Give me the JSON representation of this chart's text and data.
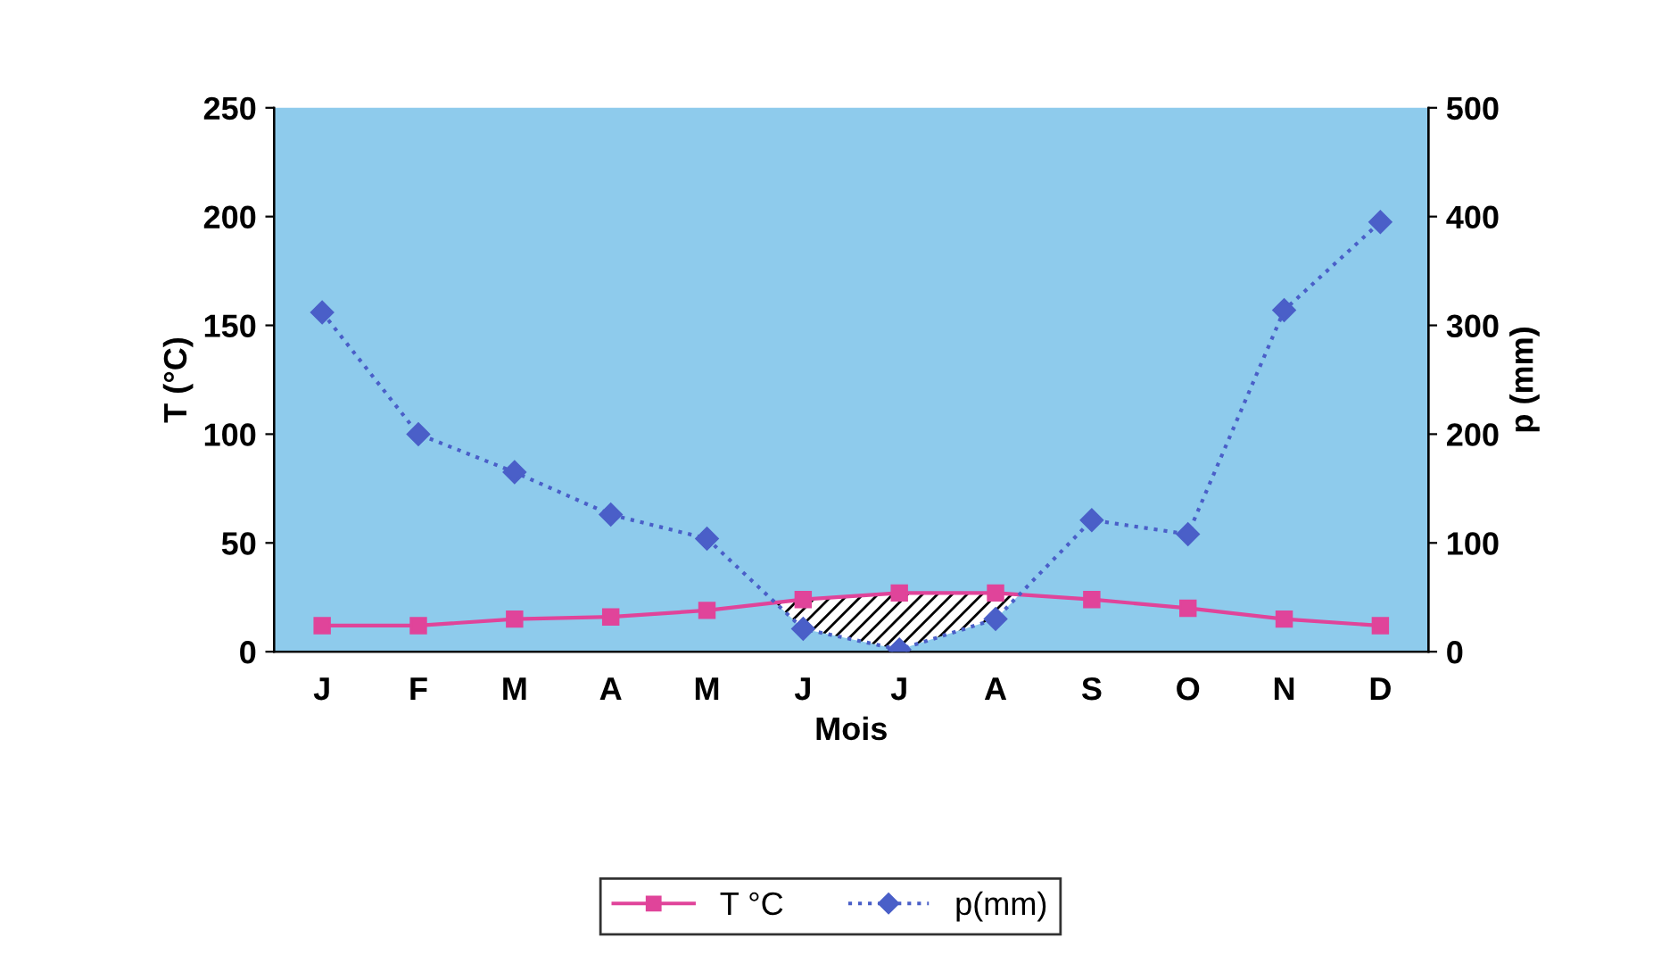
{
  "chart_data": {
    "type": "line",
    "xlabel": "Mois",
    "ylabel": "T (°C)",
    "y2label": "p (mm)",
    "categories": [
      "J",
      "F",
      "M",
      "A",
      "M",
      "J",
      "J",
      "A",
      "S",
      "O",
      "N",
      "D"
    ],
    "series": [
      {
        "name": "T °C",
        "color": "#e0449a",
        "marker": "square",
        "line_style": "solid",
        "values": [
          12,
          12,
          15,
          16,
          19,
          24,
          27,
          27,
          24,
          20,
          15,
          12
        ]
      },
      {
        "name": "p(mm)",
        "color": "#4a5fc8",
        "marker": "diamond",
        "line_style": "dotted",
        "axis": "y2",
        "values": [
          312,
          200,
          165,
          126,
          104,
          21,
          2,
          30,
          121,
          108,
          314,
          395
        ]
      }
    ],
    "ylim": [
      0,
      250
    ],
    "yticks": [
      0,
      50,
      100,
      150,
      200,
      250
    ],
    "y2lim": [
      0,
      500
    ],
    "y2ticks": [
      0,
      100,
      200,
      300,
      400,
      500
    ],
    "grid": false,
    "legend": "bottom"
  }
}
